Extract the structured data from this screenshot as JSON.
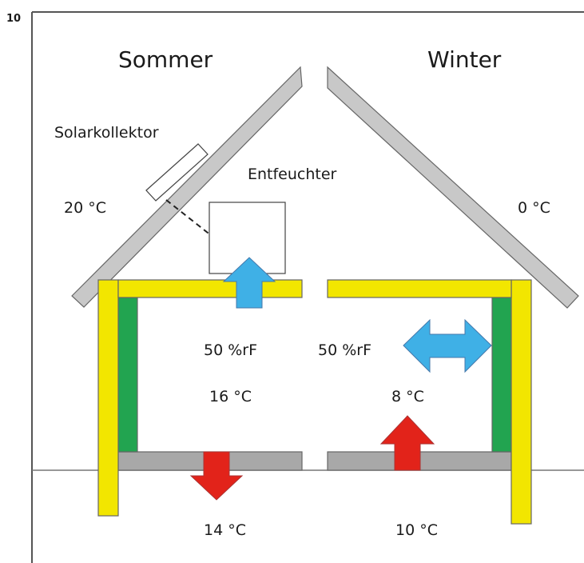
{
  "figure_number": "10",
  "summer": {
    "title": "Sommer",
    "collector": "Solarkollektor",
    "dehumidifier": "Entfeuchter",
    "outdoor_temp": "20 °C",
    "humidity": "50 %rF",
    "indoor_temp": "16 °C",
    "ground_temp": "14 °C"
  },
  "winter": {
    "title": "Winter",
    "outdoor_temp": "0 °C",
    "humidity": "50 %rF",
    "indoor_temp": "8 °C",
    "ground_temp": "10 °C"
  }
}
